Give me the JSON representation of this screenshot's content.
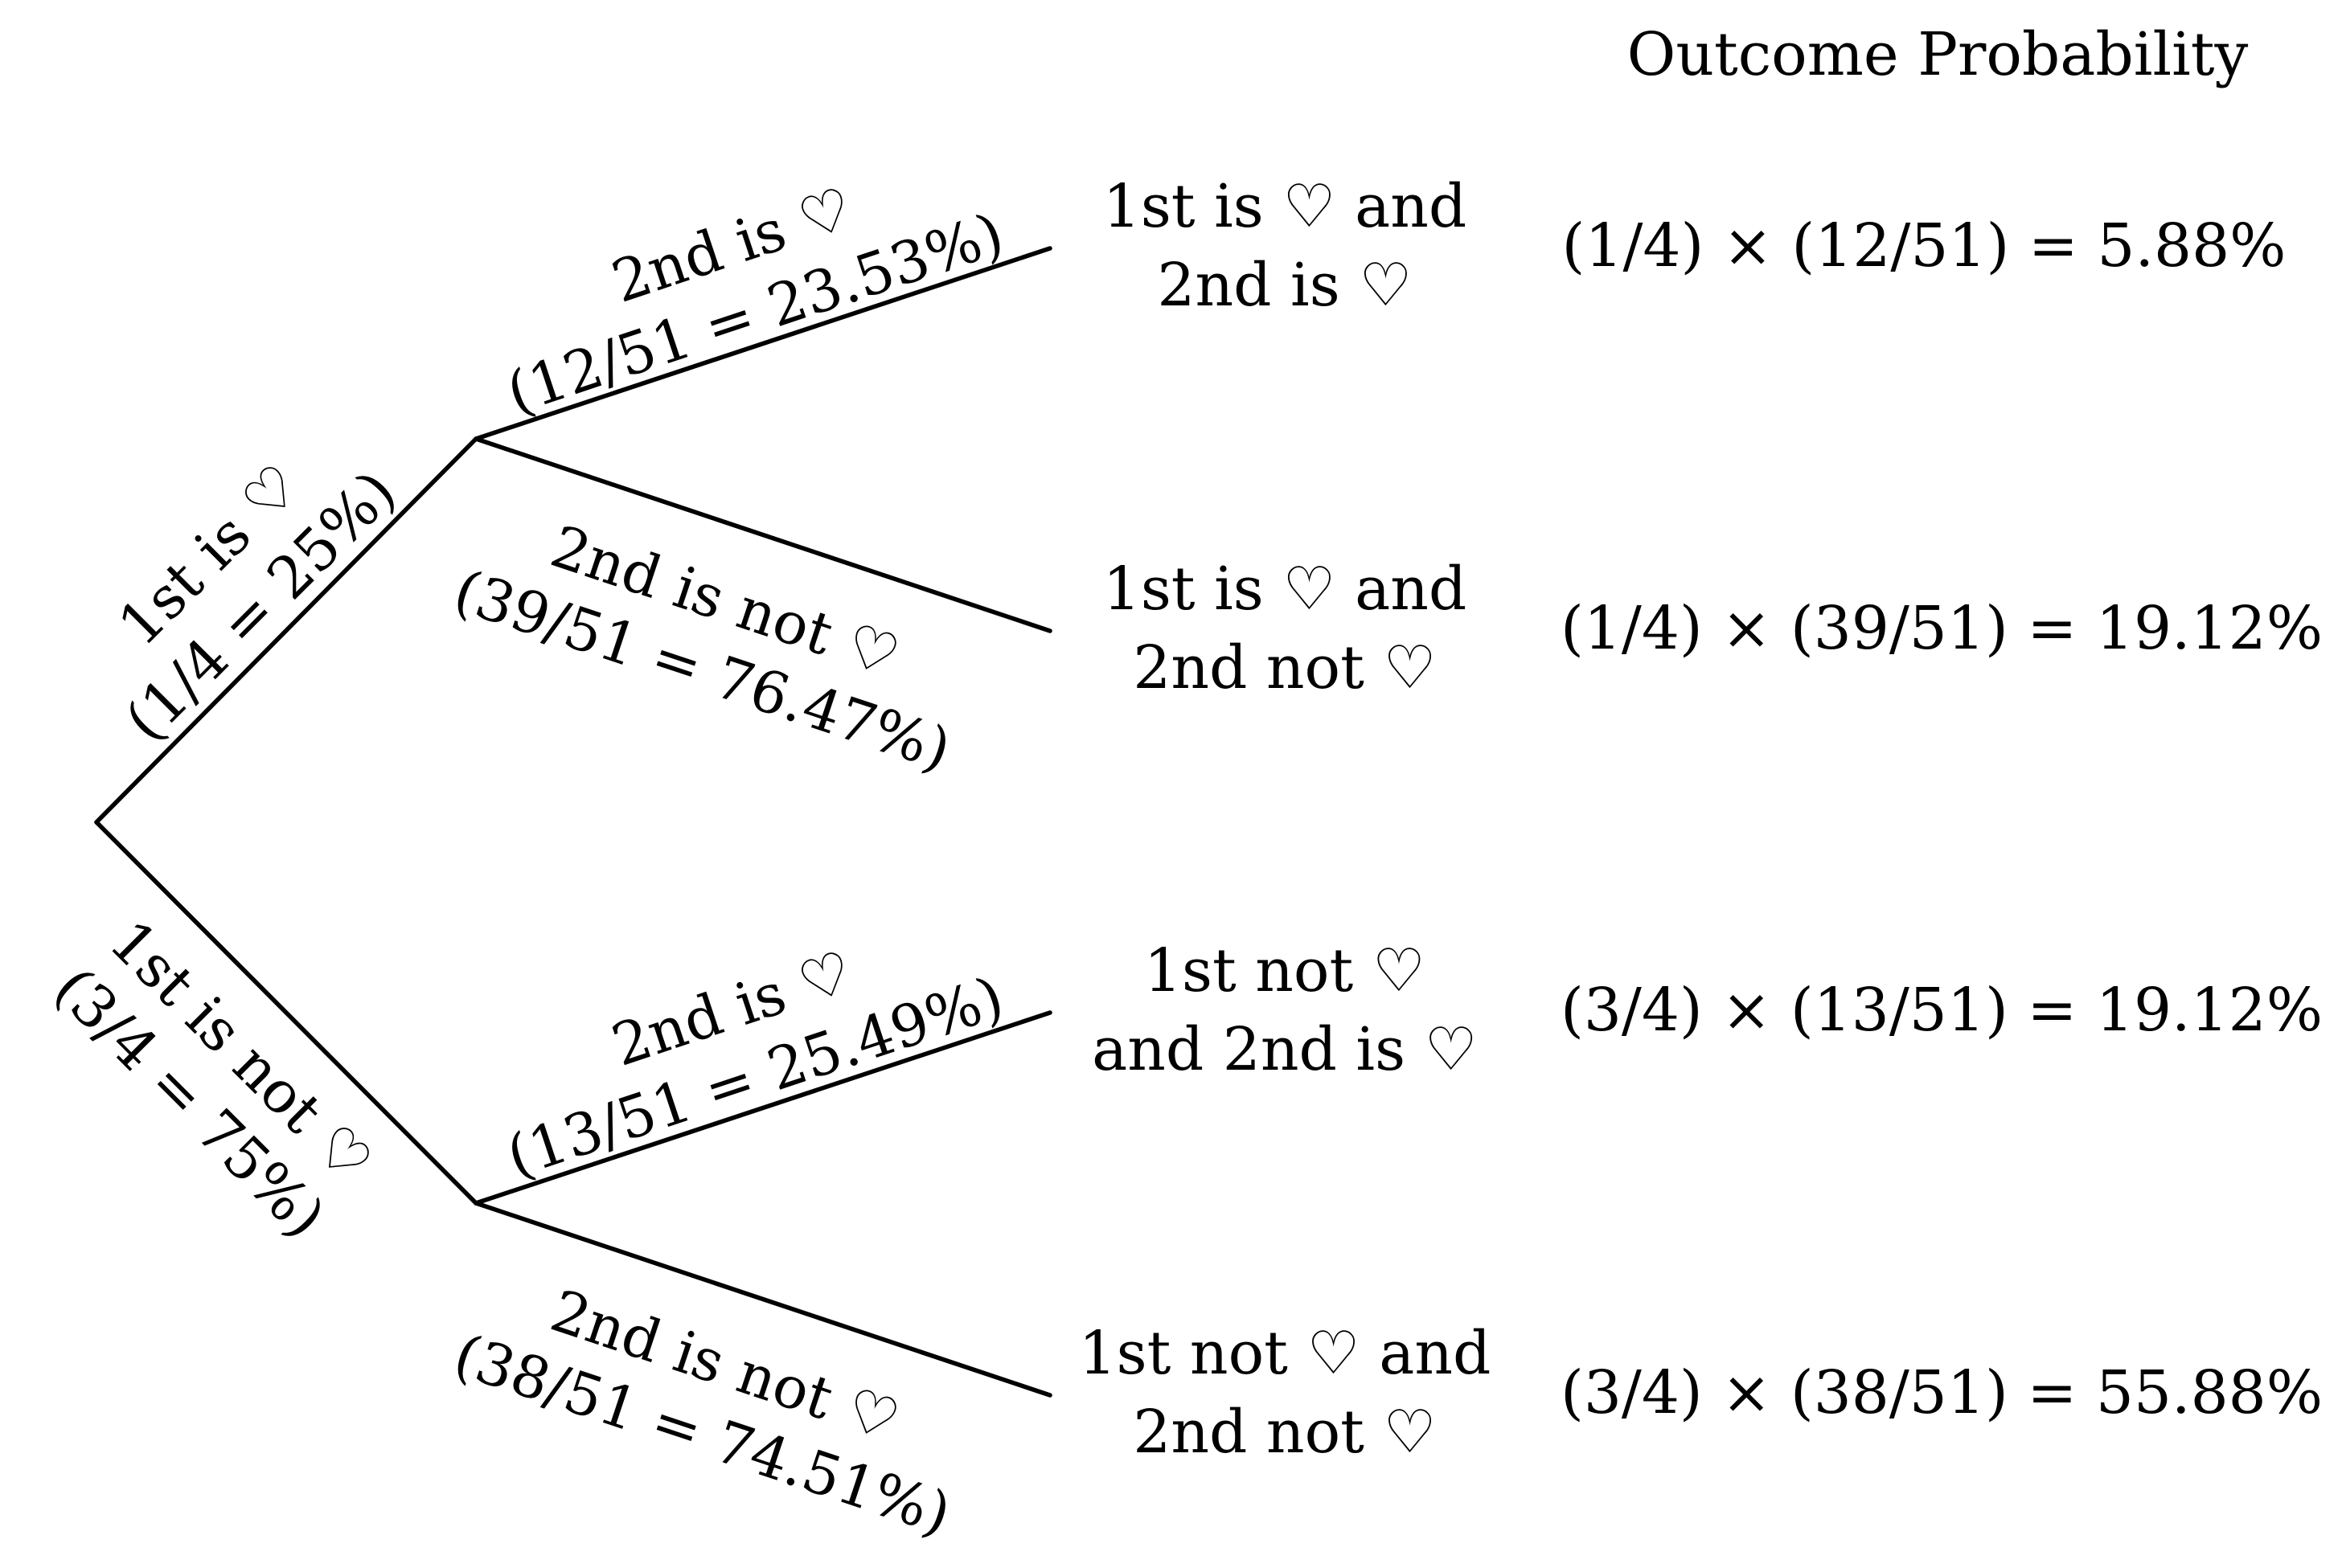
{
  "header": {
    "text": "Outcome Probability"
  },
  "branches": {
    "first_heart": {
      "line1": "1st is ♡",
      "line2": "(1/4 = 25%)"
    },
    "first_not_heart": {
      "line1": "1st is not ♡",
      "line2": "(3/4 = 75%)"
    },
    "a_second_heart": {
      "line1": "2nd is ♡",
      "line2": "(12/51 = 23.53%)"
    },
    "a_second_not_heart": {
      "line1": "2nd is not ♡",
      "line2": "(39/51 = 76.47%)"
    },
    "b_second_heart": {
      "line1": "2nd is ♡",
      "line2": "(13/51 = 25.49%)"
    },
    "b_second_not_heart": {
      "line1": "2nd is not ♡",
      "line2": "(38/51 = 74.51%)"
    }
  },
  "outcomes": [
    {
      "line1": "1st is ♡ and",
      "line2": "2nd is ♡",
      "probability": "(1/4) × (12/51) = 5.88%"
    },
    {
      "line1": "1st is ♡ and",
      "line2": "2nd not ♡",
      "probability": "(1/4) × (39/51) = 19.12%"
    },
    {
      "line1": "1st not ♡",
      "line2": "and 2nd is ♡",
      "probability": "(3/4) × (13/51) = 19.12%"
    },
    {
      "line1": "1st not ♡ and",
      "line2": "2nd not ♡",
      "probability": "(3/4) × (38/51) = 55.88%"
    }
  ]
}
